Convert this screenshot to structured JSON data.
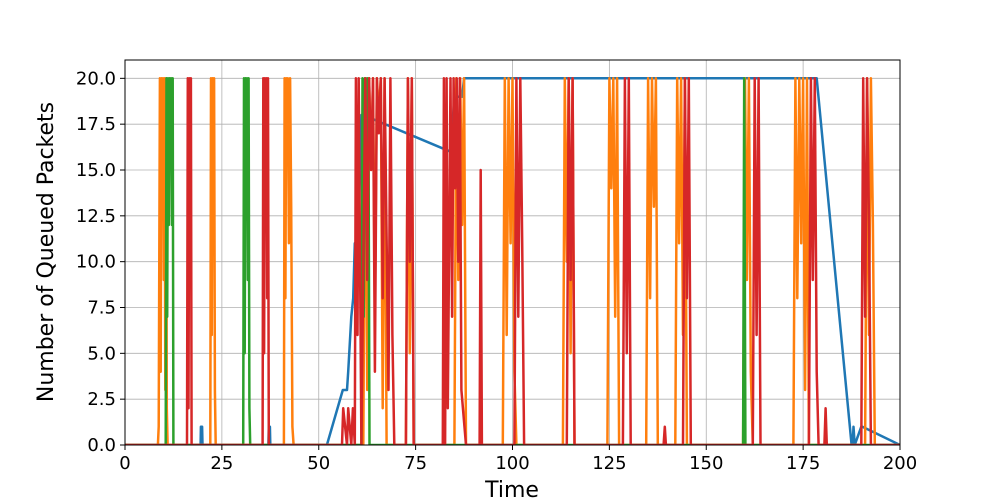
{
  "chart_data": {
    "type": "line",
    "title": "",
    "xlabel": "Time",
    "ylabel": "Number of Queued Packets",
    "xlim": [
      0,
      200
    ],
    "ylim": [
      0,
      21
    ],
    "xticks": [
      0,
      25,
      50,
      75,
      100,
      125,
      150,
      175,
      200
    ],
    "xtick_labels": [
      "0",
      "25",
      "50",
      "75",
      "100",
      "125",
      "150",
      "175",
      "200"
    ],
    "yticks": [
      0,
      2.5,
      5,
      7.5,
      10,
      12.5,
      15,
      17.5,
      20
    ],
    "ytick_labels": [
      "0.0",
      "2.5",
      "5.0",
      "7.5",
      "10.0",
      "12.5",
      "15.0",
      "17.5",
      "20.0"
    ],
    "grid": true,
    "legend": "none",
    "series": [
      {
        "color": "#1f77b4",
        "x": [
          0,
          19.5,
          19.6,
          19.9,
          20.0,
          37.0,
          37.1,
          37.4,
          37.5,
          52.0,
          52.1,
          56.2,
          57.0,
          57.3,
          57.6,
          58.4,
          58.9,
          59.3,
          59.6,
          60.0,
          60.3,
          61.0,
          61.5,
          84.0,
          85.0,
          86.0,
          86.5,
          87.0,
          87.5,
          88.0,
          98.0,
          98.5,
          102.0,
          102.5,
          174.0,
          174.5,
          178.0,
          178.5,
          187.5,
          187.8,
          188.0,
          188.3,
          190.0,
          190.3,
          200
        ],
        "y": [
          0,
          0,
          1,
          1,
          0,
          0,
          1,
          1,
          0,
          0,
          0,
          3,
          3,
          3,
          4,
          7,
          8,
          11,
          11,
          11,
          12,
          18,
          18,
          16,
          19,
          19,
          19,
          19,
          20,
          20,
          20,
          20,
          20,
          20,
          20,
          20,
          20,
          20,
          0,
          0,
          1,
          0,
          1,
          1,
          0
        ]
      },
      {
        "color": "#ff7f0e",
        "x": [
          0,
          8.5,
          8.7,
          9.0,
          9.2,
          9.4,
          9.6,
          9.8,
          10.0,
          10.2,
          10.4,
          10.6,
          10.8,
          11.0,
          22.0,
          22.2,
          22.4,
          22.6,
          22.8,
          23.0,
          23.2,
          23.4,
          41.0,
          41.2,
          41.4,
          41.6,
          41.8,
          42.0,
          42.3,
          42.6,
          42.9,
          43.2,
          43.5,
          61.5,
          62.0,
          62.5,
          63.0,
          63.5,
          64.0,
          64.5,
          65.0,
          65.5,
          66.0,
          66.5,
          67.0,
          67.5,
          72.5,
          73.0,
          73.5,
          74.0,
          74.5,
          85.0,
          85.5,
          86.0,
          86.5,
          87.0,
          87.5,
          88.0,
          97.5,
          98.0,
          98.5,
          99.0,
          99.5,
          100.0,
          100.5,
          101.0,
          113.0,
          113.5,
          114.0,
          114.5,
          115.0,
          115.5,
          116.0,
          124.5,
          125.0,
          125.5,
          126.0,
          126.5,
          127.0,
          127.5,
          134.5,
          135.0,
          135.5,
          136.0,
          136.5,
          137.0,
          137.5,
          142.0,
          142.5,
          143.0,
          143.5,
          144.0,
          144.5,
          145.0,
          159.5,
          160.0,
          160.5,
          161.0,
          161.5,
          162.0,
          172.5,
          173.0,
          173.5,
          174.0,
          174.5,
          175.0,
          175.5,
          176.0,
          176.5,
          191.0,
          191.5,
          192.0,
          192.5,
          193.0,
          193.5,
          200
        ],
        "y": [
          0,
          0,
          1,
          20,
          4,
          20,
          16,
          20,
          9,
          20,
          3,
          20,
          2,
          0,
          0,
          20,
          6,
          20,
          14,
          20,
          3,
          0,
          0,
          20,
          8,
          20,
          16,
          20,
          11,
          20,
          13,
          1,
          0,
          0,
          20,
          3,
          20,
          15,
          20,
          7,
          20,
          18,
          20,
          2,
          20,
          0,
          0,
          20,
          5,
          20,
          0,
          0,
          20,
          9,
          20,
          12,
          20,
          0,
          0,
          20,
          6,
          20,
          11,
          20,
          4,
          0,
          0,
          20,
          10,
          20,
          5,
          20,
          0,
          0,
          20,
          14,
          20,
          7,
          20,
          0,
          0,
          20,
          8,
          20,
          13,
          20,
          0,
          0,
          20,
          11,
          20,
          6,
          20,
          0,
          0,
          20,
          9,
          20,
          4,
          0,
          0,
          20,
          8,
          20,
          11,
          20,
          3,
          20,
          0,
          0,
          20,
          6,
          20,
          12,
          0,
          0
        ]
      },
      {
        "color": "#2ca02c",
        "x": [
          0,
          10.5,
          10.7,
          10.9,
          11.1,
          11.3,
          11.5,
          11.7,
          11.9,
          12.1,
          12.3,
          12.5,
          30.5,
          30.7,
          30.9,
          31.1,
          31.3,
          31.5,
          31.7,
          31.9,
          32.1,
          32.3,
          61.0,
          61.3,
          61.6,
          61.9,
          62.2,
          62.5,
          62.8,
          63.1,
          159.5,
          159.8,
          160.1,
          200
        ],
        "y": [
          0,
          0,
          20,
          7,
          20,
          12,
          20,
          19,
          20,
          12,
          20,
          0,
          0,
          20,
          5,
          20,
          14,
          20,
          9,
          20,
          2,
          0,
          0,
          20,
          7,
          20,
          16,
          20,
          19,
          0,
          0,
          20,
          0,
          0
        ]
      },
      {
        "color": "#d62728",
        "x": [
          0,
          16.0,
          16.2,
          16.4,
          16.6,
          16.8,
          17.0,
          17.2,
          35.5,
          35.7,
          35.9,
          36.1,
          36.3,
          36.5,
          36.7,
          36.9,
          37.1,
          56.0,
          56.3,
          57.3,
          57.6,
          58.4,
          58.8,
          59.3,
          59.6,
          60.0,
          60.3,
          61.0,
          62.0,
          62.5,
          63.0,
          63.5,
          64.0,
          64.5,
          65.0,
          65.5,
          66.0,
          66.5,
          67.0,
          68.0,
          68.5,
          69.0,
          69.5,
          72.5,
          73.0,
          73.5,
          74.0,
          74.5,
          82.0,
          82.3,
          82.6,
          83.0,
          83.3,
          84.0,
          84.4,
          84.8,
          85.2,
          85.6,
          86.0,
          86.4,
          86.8,
          88.0,
          91.5,
          91.8,
          92.1,
          100.5,
          101.0,
          101.5,
          102.0,
          102.5,
          103.0,
          114.0,
          114.5,
          115.0,
          115.5,
          116.0,
          128.5,
          129.0,
          129.5,
          130.0,
          130.5,
          139.0,
          139.3,
          139.6,
          144.0,
          144.5,
          145.0,
          145.5,
          146.0,
          162.0,
          162.5,
          163.0,
          163.5,
          164.0,
          176.5,
          177.0,
          177.5,
          178.0,
          178.5,
          179.0,
          180.5,
          180.8,
          181.1,
          190.0,
          190.5,
          191.0,
          191.5,
          192.0,
          192.5,
          200
        ],
        "y": [
          0,
          0,
          20,
          2,
          20,
          9,
          20,
          0,
          0,
          20,
          5,
          20,
          12,
          20,
          8,
          20,
          0,
          0,
          2,
          0,
          2,
          0,
          2,
          0,
          20,
          6,
          20,
          0,
          20,
          9,
          20,
          15,
          20,
          4,
          20,
          17,
          20,
          8,
          20,
          3,
          20,
          6,
          0,
          0,
          20,
          10,
          20,
          0,
          0,
          20,
          0,
          20,
          2,
          20,
          7,
          20,
          14,
          20,
          10,
          20,
          3,
          0,
          0,
          15,
          0,
          0,
          20,
          7,
          20,
          11,
          0,
          0,
          20,
          9,
          20,
          0,
          0,
          20,
          5,
          20,
          0,
          0,
          1,
          0,
          0,
          20,
          8,
          20,
          0,
          0,
          20,
          6,
          20,
          0,
          0,
          20,
          9,
          20,
          4,
          0,
          0,
          2,
          0,
          0,
          20,
          7,
          20,
          12,
          0,
          0
        ]
      }
    ]
  }
}
